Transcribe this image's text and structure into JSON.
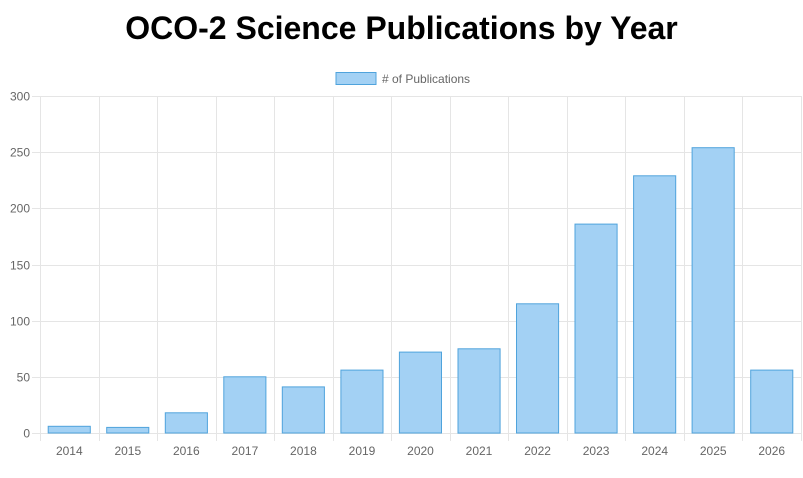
{
  "chart_data": {
    "type": "bar",
    "title": "OCO-2 Science Publications by Year",
    "categories": [
      "2014",
      "2015",
      "2016",
      "2017",
      "2018",
      "2019",
      "2020",
      "2021",
      "2022",
      "2023",
      "2024",
      "2025",
      "2026"
    ],
    "series": [
      {
        "name": "# of Publications",
        "values": [
          6,
          5,
          18,
          50,
          41,
          56,
          72,
          75,
          115,
          186,
          229,
          254,
          56
        ]
      }
    ],
    "yticks": [
      "0",
      "50",
      "100",
      "150",
      "200",
      "250",
      "300"
    ],
    "ylim": [
      0,
      300
    ],
    "xlabel": "",
    "ylabel": "",
    "grid": true,
    "legend_position": "top-center",
    "colors": {
      "bar_fill": "#a3d1f4",
      "bar_stroke": "#4fa3dc",
      "grid": "#e5e5e5",
      "tick_text": "#666666"
    }
  }
}
